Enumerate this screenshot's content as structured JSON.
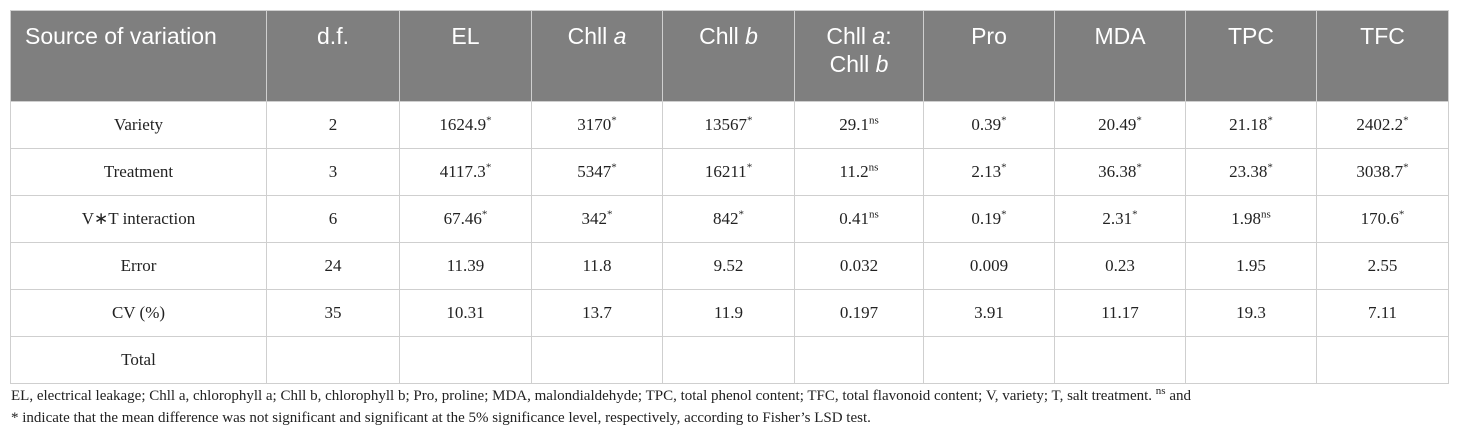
{
  "table": {
    "headers": {
      "source": "Source of variation",
      "df": "d.f.",
      "el": "EL",
      "chlla_text": "Chll ",
      "chlla_italic": "a",
      "chllb_text": "Chll ",
      "chllb_italic": "b",
      "ratio_l1_text": "Chll ",
      "ratio_l1_italic": "a",
      "ratio_l1_colon": ":",
      "ratio_l2_text": "Chll ",
      "ratio_l2_italic": "b",
      "pro": "Pro",
      "mda": "MDA",
      "tpc": "TPC",
      "tfc": "TFC"
    },
    "rows": [
      {
        "source": "Variety",
        "df": "2",
        "el": {
          "v": "1624.9",
          "s": "*"
        },
        "chlla": {
          "v": "3170",
          "s": "*"
        },
        "chllb": {
          "v": "13567",
          "s": "*"
        },
        "ratio": {
          "v": "29.1",
          "s": "ns"
        },
        "pro": {
          "v": "0.39",
          "s": "*"
        },
        "mda": {
          "v": "20.49",
          "s": "*"
        },
        "tpc": {
          "v": "21.18",
          "s": "*"
        },
        "tfc": {
          "v": "2402.2",
          "s": "*"
        }
      },
      {
        "source": "Treatment",
        "df": "3",
        "el": {
          "v": "4117.3",
          "s": "*"
        },
        "chlla": {
          "v": "5347",
          "s": "*"
        },
        "chllb": {
          "v": "16211",
          "s": "*"
        },
        "ratio": {
          "v": "11.2",
          "s": "ns"
        },
        "pro": {
          "v": "2.13",
          "s": "*"
        },
        "mda": {
          "v": "36.38",
          "s": "*"
        },
        "tpc": {
          "v": "23.38",
          "s": "*"
        },
        "tfc": {
          "v": "3038.7",
          "s": "*"
        }
      },
      {
        "source": "V∗T interaction",
        "df": "6",
        "el": {
          "v": "67.46",
          "s": "*"
        },
        "chlla": {
          "v": "342",
          "s": "*"
        },
        "chllb": {
          "v": "842",
          "s": "*"
        },
        "ratio": {
          "v": "0.41",
          "s": "ns"
        },
        "pro": {
          "v": "0.19",
          "s": "*"
        },
        "mda": {
          "v": "2.31",
          "s": "*"
        },
        "tpc": {
          "v": "1.98",
          "s": "ns"
        },
        "tfc": {
          "v": "170.6",
          "s": "*"
        }
      },
      {
        "source": "Error",
        "df": "24",
        "el": {
          "v": "11.39",
          "s": ""
        },
        "chlla": {
          "v": "11.8",
          "s": ""
        },
        "chllb": {
          "v": "9.52",
          "s": ""
        },
        "ratio": {
          "v": "0.032",
          "s": ""
        },
        "pro": {
          "v": "0.009",
          "s": ""
        },
        "mda": {
          "v": "0.23",
          "s": ""
        },
        "tpc": {
          "v": "1.95",
          "s": ""
        },
        "tfc": {
          "v": "2.55",
          "s": ""
        }
      },
      {
        "source": "CV (%)",
        "df": "35",
        "el": {
          "v": "10.31",
          "s": ""
        },
        "chlla": {
          "v": "13.7",
          "s": ""
        },
        "chllb": {
          "v": "11.9",
          "s": ""
        },
        "ratio": {
          "v": "0.197",
          "s": ""
        },
        "pro": {
          "v": "3.91",
          "s": ""
        },
        "mda": {
          "v": "11.17",
          "s": ""
        },
        "tpc": {
          "v": "19.3",
          "s": ""
        },
        "tfc": {
          "v": "7.11",
          "s": ""
        }
      },
      {
        "source": "Total",
        "df": "",
        "el": {
          "v": "",
          "s": ""
        },
        "chlla": {
          "v": "",
          "s": ""
        },
        "chllb": {
          "v": "",
          "s": ""
        },
        "ratio": {
          "v": "",
          "s": ""
        },
        "pro": {
          "v": "",
          "s": ""
        },
        "mda": {
          "v": "",
          "s": ""
        },
        "tpc": {
          "v": "",
          "s": ""
        },
        "tfc": {
          "v": "",
          "s": ""
        }
      }
    ]
  },
  "footnote": {
    "abbrev": "EL, electrical leakage; Chll a, chlorophyll a; Chll b, chlorophyll b; Pro, proline; MDA, malondialdehyde; TPC, total phenol content; TFC, total flavonoid content; V, variety; T, salt treatment. ",
    "ns_mark": "ns",
    "and_word": " and",
    "line2": "* indicate that the mean difference was not significant and significant at the 5% significance level, respectively, according to Fisher’s LSD test."
  }
}
